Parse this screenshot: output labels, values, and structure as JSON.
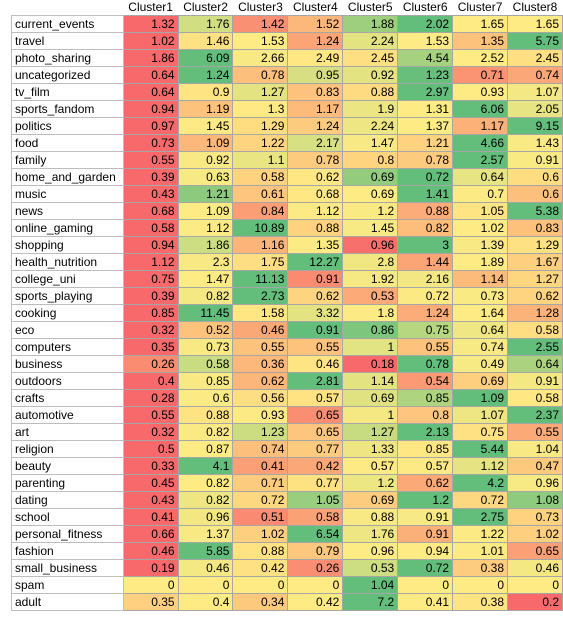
{
  "chart_data": {
    "type": "heatmap",
    "title": "",
    "columns": [
      "Cluster1",
      "Cluster2",
      "Cluster3",
      "Cluster4",
      "Cluster5",
      "Cluster6",
      "Cluster7",
      "Cluster8"
    ],
    "rows": [
      "current_events",
      "travel",
      "photo_sharing",
      "uncategorized",
      "tv_film",
      "sports_fandom",
      "politics",
      "food",
      "family",
      "home_and_garden",
      "music",
      "news",
      "online_gaming",
      "shopping",
      "health_nutrition",
      "college_uni",
      "sports_playing",
      "cooking",
      "eco",
      "computers",
      "business",
      "outdoors",
      "crafts",
      "automotive",
      "art",
      "religion",
      "beauty",
      "parenting",
      "dating",
      "school",
      "personal_fitness",
      "fashion",
      "small_business",
      "spam",
      "adult"
    ],
    "values": [
      [
        "1.32",
        "1.76",
        "1.42",
        "1.52",
        "1.88",
        "2.02",
        "1.65",
        "1.65"
      ],
      [
        "1.02",
        "1.46",
        "1.53",
        "1.24",
        "2.24",
        "1.53",
        "1.35",
        "5.75"
      ],
      [
        "1.86",
        "6.09",
        "2.66",
        "2.49",
        "2.45",
        "4.54",
        "2.52",
        "2.45"
      ],
      [
        "0.64",
        "1.24",
        "0.78",
        "0.95",
        "0.92",
        "1.23",
        "0.71",
        "0.74"
      ],
      [
        "0.64",
        "0.9",
        "1.27",
        "0.83",
        "0.88",
        "2.97",
        "0.93",
        "1.07"
      ],
      [
        "0.94",
        "1.19",
        "1.3",
        "1.17",
        "1.9",
        "1.31",
        "6.06",
        "2.05"
      ],
      [
        "0.97",
        "1.45",
        "1.29",
        "1.24",
        "2.24",
        "1.37",
        "1.17",
        "9.15"
      ],
      [
        "0.73",
        "1.09",
        "1.22",
        "2.17",
        "1.47",
        "1.21",
        "4.66",
        "1.43"
      ],
      [
        "0.55",
        "0.92",
        "1.1",
        "0.78",
        "0.8",
        "0.78",
        "2.57",
        "0.91"
      ],
      [
        "0.39",
        "0.63",
        "0.58",
        "0.62",
        "0.69",
        "0.72",
        "0.64",
        "0.6"
      ],
      [
        "0.43",
        "1.21",
        "0.61",
        "0.68",
        "0.69",
        "1.41",
        "0.7",
        "0.6"
      ],
      [
        "0.68",
        "1.09",
        "0.84",
        "1.12",
        "1.2",
        "0.88",
        "1.05",
        "5.38"
      ],
      [
        "0.58",
        "1.12",
        "10.89",
        "0.88",
        "1.45",
        "0.82",
        "1.02",
        "0.83"
      ],
      [
        "0.94",
        "1.86",
        "1.16",
        "1.35",
        "0.96",
        "3",
        "1.39",
        "1.29"
      ],
      [
        "1.12",
        "2.3",
        "1.75",
        "12.27",
        "2.8",
        "1.44",
        "1.89",
        "1.67"
      ],
      [
        "0.75",
        "1.47",
        "11.13",
        "0.91",
        "1.92",
        "2.16",
        "1.14",
        "1.27"
      ],
      [
        "0.39",
        "0.82",
        "2.73",
        "0.62",
        "0.53",
        "0.72",
        "0.73",
        "0.62"
      ],
      [
        "0.85",
        "11.45",
        "1.58",
        "3.32",
        "1.8",
        "1.24",
        "1.64",
        "1.28"
      ],
      [
        "0.32",
        "0.52",
        "0.46",
        "0.91",
        "0.86",
        "0.75",
        "0.64",
        "0.58"
      ],
      [
        "0.35",
        "0.73",
        "0.55",
        "0.55",
        "1",
        "0.55",
        "0.74",
        "2.55"
      ],
      [
        "0.26",
        "0.58",
        "0.36",
        "0.46",
        "0.18",
        "0.78",
        "0.49",
        "0.64"
      ],
      [
        "0.4",
        "0.85",
        "0.62",
        "2.81",
        "1.14",
        "0.54",
        "0.69",
        "0.91"
      ],
      [
        "0.28",
        "0.6",
        "0.56",
        "0.57",
        "0.69",
        "0.85",
        "1.09",
        "0.58"
      ],
      [
        "0.55",
        "0.88",
        "0.93",
        "0.65",
        "1",
        "0.8",
        "1.07",
        "2.37"
      ],
      [
        "0.32",
        "0.82",
        "1.23",
        "0.65",
        "1.27",
        "2.13",
        "0.75",
        "0.55"
      ],
      [
        "0.5",
        "0.87",
        "0.74",
        "0.77",
        "1.33",
        "0.85",
        "5.44",
        "1.04"
      ],
      [
        "0.33",
        "4.1",
        "0.41",
        "0.42",
        "0.57",
        "0.57",
        "1.12",
        "0.47"
      ],
      [
        "0.45",
        "0.82",
        "0.71",
        "0.77",
        "1.2",
        "0.62",
        "4.2",
        "0.96"
      ],
      [
        "0.43",
        "0.82",
        "0.72",
        "1.05",
        "0.69",
        "1.2",
        "0.72",
        "1.08"
      ],
      [
        "0.41",
        "0.96",
        "0.51",
        "0.58",
        "0.88",
        "0.91",
        "2.75",
        "0.73"
      ],
      [
        "0.66",
        "1.37",
        "1.02",
        "6.54",
        "1.76",
        "0.91",
        "1.22",
        "1.02"
      ],
      [
        "0.46",
        "5.85",
        "0.88",
        "0.79",
        "0.96",
        "0.94",
        "1.01",
        "0.65"
      ],
      [
        "0.19",
        "0.46",
        "0.42",
        "0.26",
        "0.53",
        "0.72",
        "0.38",
        "0.46"
      ],
      [
        "0",
        "0",
        "0",
        "0",
        "1.04",
        "0",
        "0",
        "0"
      ],
      [
        "0.35",
        "0.4",
        "0.34",
        "0.42",
        "7.2",
        "0.41",
        "0.38",
        "0.2"
      ]
    ],
    "color_scale": {
      "low": "#f8696b",
      "mid": "#ffeb84",
      "high": "#63be7b",
      "mode": "per-row"
    }
  }
}
